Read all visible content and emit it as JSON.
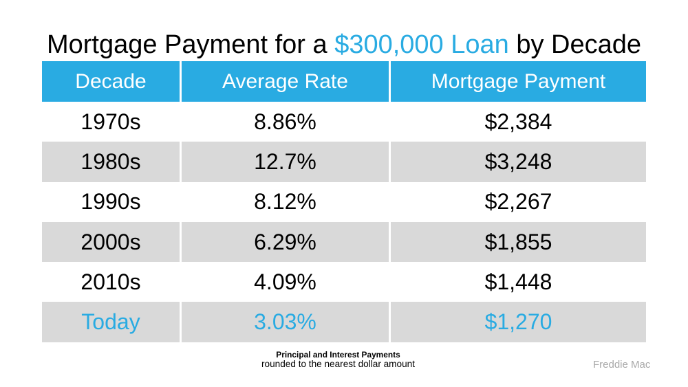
{
  "title": {
    "prefix": "Mortgage Payment for a ",
    "highlight": "$300,000 Loan",
    "suffix": " by Decade"
  },
  "table": {
    "headers": [
      "Decade",
      "Average Rate",
      "Mortgage Payment"
    ],
    "rows": [
      {
        "decade": "1970s",
        "rate": "8.86%",
        "payment": "$2,384"
      },
      {
        "decade": "1980s",
        "rate": "12.7%",
        "payment": "$3,248"
      },
      {
        "decade": "1990s",
        "rate": "8.12%",
        "payment": "$2,267"
      },
      {
        "decade": "2000s",
        "rate": "6.29%",
        "payment": "$1,855"
      },
      {
        "decade": "2010s",
        "rate": "4.09%",
        "payment": "$1,448"
      },
      {
        "decade": "Today",
        "rate": "3.03%",
        "payment": "$1,270"
      }
    ]
  },
  "footnote": {
    "line1": "Principal and Interest Payments",
    "line2": "rounded to the nearest dollar amount"
  },
  "source": "Freddie Mac",
  "colors": {
    "accent": "#29ABE2",
    "row_alt": "#D9D9D9",
    "header_text": "#FFFFFF",
    "source_text": "#A8A8A8"
  },
  "chart_data": {
    "type": "table",
    "title": "Mortgage Payment for a $300,000 Loan by Decade",
    "columns": [
      "Decade",
      "Average Rate",
      "Mortgage Payment"
    ],
    "rows": [
      [
        "1970s",
        "8.86%",
        "$2,384"
      ],
      [
        "1980s",
        "12.7%",
        "$3,248"
      ],
      [
        "1990s",
        "8.12%",
        "$2,267"
      ],
      [
        "2000s",
        "6.29%",
        "$1,855"
      ],
      [
        "2010s",
        "4.09%",
        "$1,448"
      ],
      [
        "Today",
        "3.03%",
        "$1,270"
      ]
    ],
    "loan_amount_usd": 300000,
    "rates_percent": [
      8.86,
      12.7,
      8.12,
      6.29,
      4.09,
      3.03
    ],
    "payments_usd": [
      2384,
      3248,
      2267,
      1855,
      1448,
      1270
    ],
    "notes": "Principal and Interest Payments rounded to the nearest dollar amount",
    "source": "Freddie Mac"
  }
}
